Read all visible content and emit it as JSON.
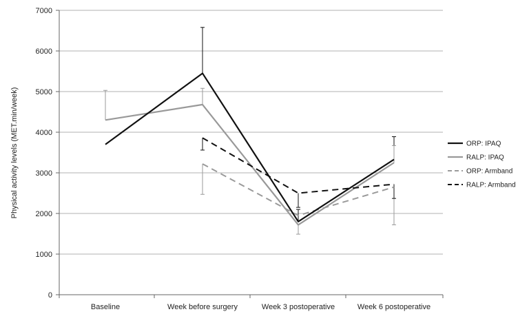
{
  "chart_data": {
    "type": "line",
    "title": "",
    "xlabel": "",
    "ylabel": "Physical activity levels (MET.min/week)",
    "categories": [
      "Baseline",
      "Week before surgery",
      "Week 3 postoperative",
      "Week 6 postoperative"
    ],
    "ylim": [
      0,
      7000
    ],
    "yticks": [
      0,
      1000,
      2000,
      3000,
      4000,
      5000,
      6000,
      7000
    ],
    "grid": true,
    "legend_position": "right",
    "series": [
      {
        "name": "ORP: IPAQ",
        "values": [
          3700,
          5450,
          1800,
          3330
        ],
        "error_plus": [
          null,
          1130,
          300,
          560
        ],
        "error_minus": [
          null,
          null,
          null,
          null
        ],
        "color": "#111111",
        "dash": "solid",
        "width": 2.2
      },
      {
        "name": "RALP: IPAQ",
        "values": [
          4300,
          4680,
          1720,
          3250
        ],
        "error_plus": [
          730,
          400,
          null,
          420
        ],
        "error_minus": [
          null,
          null,
          230,
          null
        ],
        "color": "#999999",
        "dash": "solid",
        "width": 2.2
      },
      {
        "name": "ORP: Armband",
        "values": [
          null,
          3220,
          1950,
          2650
        ],
        "error_plus": [
          null,
          null,
          null,
          null
        ],
        "error_minus": [
          null,
          750,
          null,
          930
        ],
        "color": "#9a9a9a",
        "dash": "dashed",
        "width": 2
      },
      {
        "name": "RALP: Armband",
        "values": [
          null,
          3860,
          2500,
          2720
        ],
        "error_plus": [
          null,
          null,
          null,
          null
        ],
        "error_minus": [
          null,
          300,
          350,
          350
        ],
        "color": "#111111",
        "dash": "dashed",
        "width": 2
      }
    ]
  }
}
